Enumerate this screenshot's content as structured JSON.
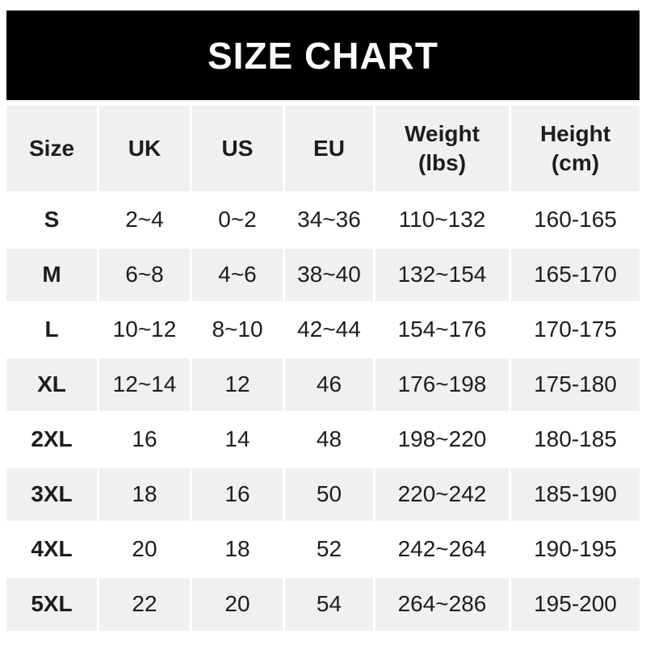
{
  "title": "SIZE CHART",
  "colors": {
    "banner_bg": "#000000",
    "banner_text": "#ffffff",
    "shaded_row_bg": "#f0f0f0",
    "row_bg": "#ffffff",
    "text": "#1d1d1f"
  },
  "table": {
    "columns": [
      "Size",
      "UK",
      "US",
      "EU",
      "Weight\n(lbs)",
      "Height\n(cm)"
    ],
    "rows": [
      [
        "S",
        "2~4",
        "0~2",
        "34~36",
        "110~132",
        "160-165"
      ],
      [
        "M",
        "6~8",
        "4~6",
        "38~40",
        "132~154",
        "165-170"
      ],
      [
        "L",
        "10~12",
        "8~10",
        "42~44",
        "154~176",
        "170-175"
      ],
      [
        "XL",
        "12~14",
        "12",
        "46",
        "176~198",
        "175-180"
      ],
      [
        "2XL",
        "16",
        "14",
        "48",
        "198~220",
        "180-185"
      ],
      [
        "3XL",
        "18",
        "16",
        "50",
        "220~242",
        "185-190"
      ],
      [
        "4XL",
        "20",
        "18",
        "52",
        "242~264",
        "190-195"
      ],
      [
        "5XL",
        "22",
        "20",
        "54",
        "264~286",
        "195-200"
      ]
    ]
  },
  "chart_data": {
    "type": "table",
    "title": "SIZE CHART",
    "columns": [
      "Size",
      "UK",
      "US",
      "EU",
      "Weight (lbs)",
      "Height (cm)"
    ],
    "rows": [
      [
        "S",
        "2~4",
        "0~2",
        "34~36",
        "110~132",
        "160-165"
      ],
      [
        "M",
        "6~8",
        "4~6",
        "38~40",
        "132~154",
        "165-170"
      ],
      [
        "L",
        "10~12",
        "8~10",
        "42~44",
        "154~176",
        "170-175"
      ],
      [
        "XL",
        "12~14",
        "12",
        "46",
        "176~198",
        "175-180"
      ],
      [
        "2XL",
        "16",
        "14",
        "48",
        "198~220",
        "180-185"
      ],
      [
        "3XL",
        "18",
        "16",
        "50",
        "220~242",
        "185-190"
      ],
      [
        "4XL",
        "20",
        "18",
        "52",
        "242~264",
        "190-195"
      ],
      [
        "5XL",
        "22",
        "20",
        "54",
        "264~286",
        "195-200"
      ]
    ]
  }
}
